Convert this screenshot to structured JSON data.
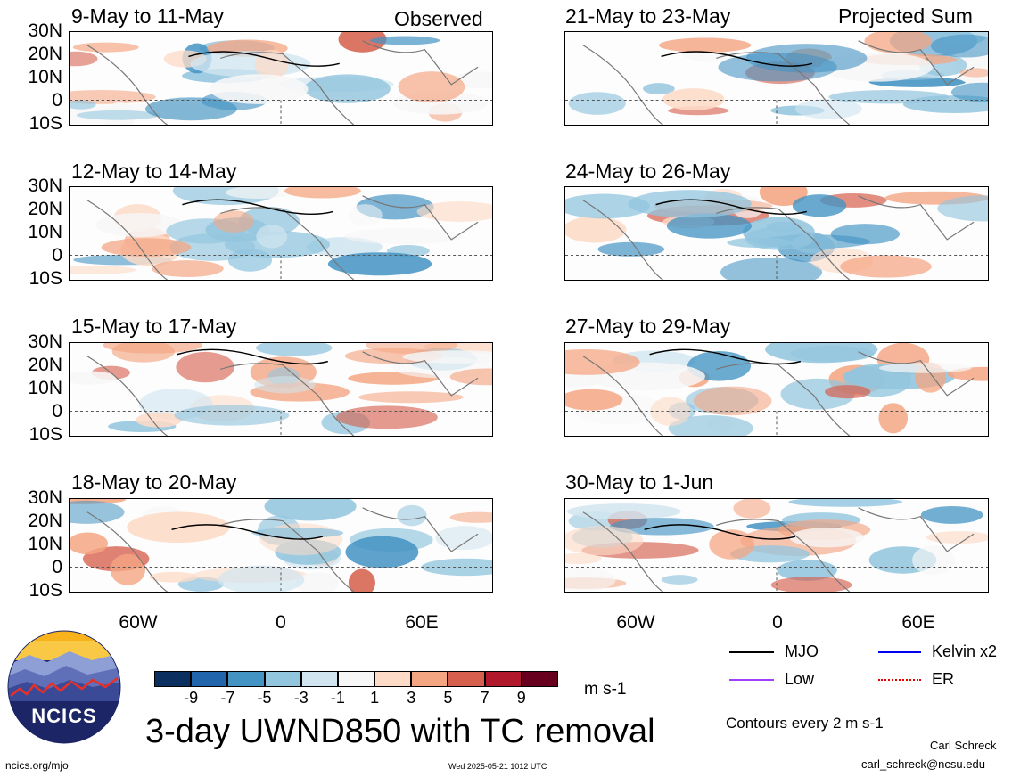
{
  "panels": {
    "left": [
      {
        "title": "9-May to 11-May",
        "tag": "Observed"
      },
      {
        "title": "12-May to 14-May",
        "tag": ""
      },
      {
        "title": "15-May to 17-May",
        "tag": ""
      },
      {
        "title": "18-May to 20-May",
        "tag": ""
      }
    ],
    "right": [
      {
        "title": "21-May to 23-May",
        "tag": "Projected Sum"
      },
      {
        "title": "24-May to 26-May",
        "tag": ""
      },
      {
        "title": "27-May to 29-May",
        "tag": ""
      },
      {
        "title": "30-May to 1-Jun",
        "tag": ""
      }
    ]
  },
  "lat_labels": [
    "30N",
    "20N",
    "10N",
    "0",
    "10S"
  ],
  "lon_labels": [
    "60W",
    "0",
    "60E"
  ],
  "colorbar": {
    "labels": [
      "-9",
      "-7",
      "-5",
      "-3",
      "-1",
      "1",
      "3",
      "5",
      "7",
      "9"
    ],
    "colors": [
      "#0b2f5e",
      "#2166ac",
      "#4393c3",
      "#92c5de",
      "#d1e5f0",
      "#f7f7f7",
      "#fddbc7",
      "#f4a582",
      "#d6604d",
      "#b2182b",
      "#67001f"
    ],
    "units": "m s-1"
  },
  "legend": {
    "items": [
      {
        "label": "MJO",
        "color": "#000000"
      },
      {
        "label": "Kelvin x2",
        "color": "#0000ee"
      },
      {
        "label": "Low",
        "color": "#a040ff"
      },
      {
        "label": "ER",
        "color": "#ee0000"
      }
    ],
    "contours_note": "Contours every 2 m s-1"
  },
  "main_title": "3-day UWND850 with TC removal",
  "logo_text": "NCICS",
  "footer": {
    "site": "ncics.org/mjo",
    "timestamp": "Wed 2025-05-21 1012 UTC",
    "author": "Carl Schreck",
    "email": "carl_schreck@ncsu.edu"
  }
}
